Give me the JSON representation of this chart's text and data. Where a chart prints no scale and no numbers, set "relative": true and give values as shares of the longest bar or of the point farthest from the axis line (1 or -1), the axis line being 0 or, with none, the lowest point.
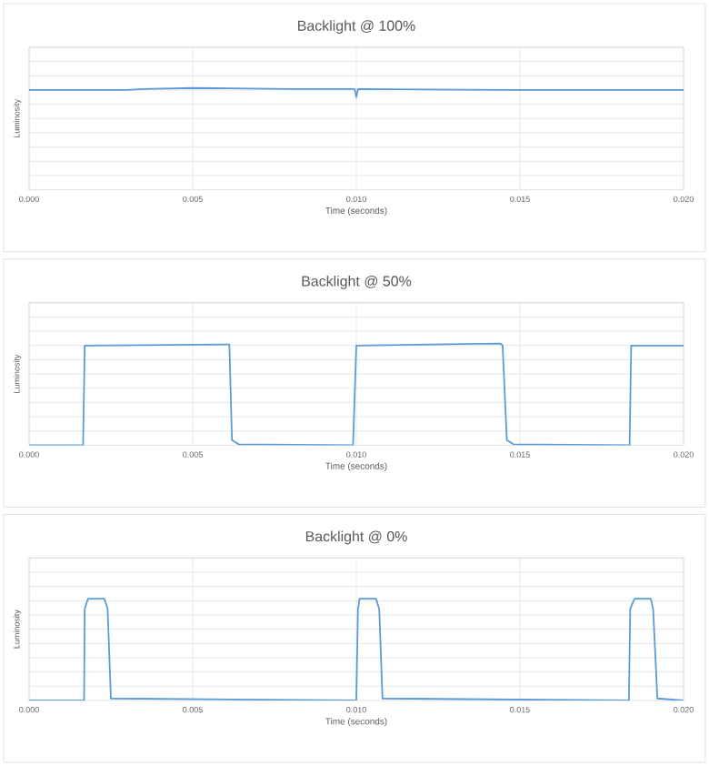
{
  "chart_data": [
    {
      "type": "line",
      "title": "Backlight @ 100%",
      "xlabel": "Time (seconds)",
      "ylabel": "Luminosity",
      "relative": true,
      "grid": true,
      "color": "#5b9bd5",
      "xlim": [
        0,
        0.02
      ],
      "xticks": [
        {
          "value": 0,
          "label": "0.000"
        },
        {
          "value": 0.005,
          "label": "0.005"
        },
        {
          "value": 0.01,
          "label": "0.010"
        },
        {
          "value": 0.015,
          "label": "0.015"
        },
        {
          "value": 0.02,
          "label": "0.020"
        }
      ],
      "x": [
        0,
        0.003,
        0.0035,
        0.005,
        0.008,
        0.00995,
        0.01,
        0.01005,
        0.015,
        0.02
      ],
      "values": [
        0.98,
        0.98,
        0.99,
        1,
        0.99,
        0.99,
        0.91,
        0.99,
        0.98,
        0.98
      ]
    },
    {
      "type": "line",
      "title": "Backlight @ 50%",
      "xlabel": "Time (seconds)",
      "ylabel": "Luminosity",
      "relative": true,
      "grid": true,
      "color": "#5b9bd5",
      "xlim": [
        0,
        0.02
      ],
      "xticks": [
        {
          "value": 0,
          "label": "0.000"
        },
        {
          "value": 0.005,
          "label": "0.005"
        },
        {
          "value": 0.01,
          "label": "0.010"
        },
        {
          "value": 0.015,
          "label": "0.015"
        },
        {
          "value": 0.02,
          "label": "0.020"
        }
      ],
      "x": [
        0,
        0.00165,
        0.0017,
        0.006,
        0.00612,
        0.0062,
        0.0064,
        0.0099,
        0.01,
        0.0144,
        0.01447,
        0.0146,
        0.0148,
        0.01835,
        0.0184,
        0.02
      ],
      "values": [
        0,
        0,
        0.98,
        0.99,
        0.99,
        0.05,
        0.01,
        0,
        0.98,
        1,
        0.98,
        0.05,
        0.01,
        0,
        0.98,
        0.98
      ]
    },
    {
      "type": "line",
      "title": "Backlight @ 0%",
      "xlabel": "Time (seconds)",
      "ylabel": "Luminosity",
      "relative": true,
      "grid": true,
      "color": "#5b9bd5",
      "xlim": [
        0,
        0.02
      ],
      "xticks": [
        {
          "value": 0,
          "label": "0.000"
        },
        {
          "value": 0.005,
          "label": "0.005"
        },
        {
          "value": 0.01,
          "label": "0.010"
        },
        {
          "value": 0.015,
          "label": "0.015"
        },
        {
          "value": 0.02,
          "label": "0.020"
        }
      ],
      "x": [
        0,
        0.00168,
        0.0017,
        0.0018,
        0.0023,
        0.0024,
        0.0025,
        0.01,
        0.01005,
        0.0101,
        0.0106,
        0.0107,
        0.0108,
        0.01833,
        0.01837,
        0.0185,
        0.019,
        0.01907,
        0.0192,
        0.02
      ],
      "values": [
        0,
        0,
        0.9,
        1,
        1,
        0.9,
        0.02,
        0,
        0.9,
        1,
        1,
        0.9,
        0.02,
        0,
        0.9,
        1,
        1,
        0.9,
        0.02,
        0
      ]
    }
  ]
}
